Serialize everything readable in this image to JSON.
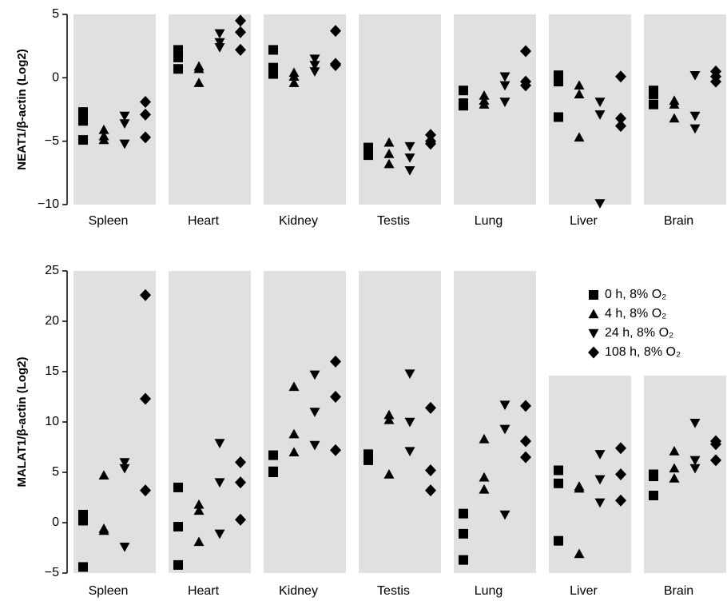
{
  "chart_data": [
    {
      "type": "strip",
      "ylabel": "NEAT1/β-actin (Log2)",
      "categories": [
        "Spleen",
        "Heart",
        "Kidney",
        "Testis",
        "Lung",
        "Liver",
        "Brain"
      ],
      "ylim": [
        -10,
        5
      ],
      "yticks": [
        5,
        0,
        {
          "value": -5,
          "label": "−5"
        },
        {
          "value": -10,
          "label": "−10"
        }
      ],
      "band_color": "#e0e0e0",
      "series": [
        {
          "marker": "square",
          "color": "#000000",
          "values": [
            [
              -2.7,
              -3.4,
              -4.9
            ],
            [
              2.2,
              1.6,
              0.7
            ],
            [
              2.2,
              0.8,
              0.3
            ],
            [
              -5.5,
              -5.8,
              -6.1
            ],
            [
              -1.0,
              -2.0,
              -2.2
            ],
            [
              0.2,
              -0.3,
              -3.1
            ],
            [
              -1.0,
              -1.3,
              -2.1
            ]
          ]
        },
        {
          "marker": "triangle-up",
          "color": "#000000",
          "values": [
            [
              -4.1,
              -4.6,
              -4.9
            ],
            [
              0.9,
              0.7,
              -0.4
            ],
            [
              0.4,
              0.1,
              -0.4
            ],
            [
              -5.1,
              -6.0,
              -6.8
            ],
            [
              -1.4,
              -1.8,
              -2.1
            ],
            [
              -0.6,
              -1.3,
              -4.7
            ],
            [
              -1.8,
              -2.1,
              -3.2
            ]
          ]
        },
        {
          "marker": "triangle-down",
          "color": "#000000",
          "values": [
            [
              -3.0,
              -3.6,
              -5.2
            ],
            [
              3.5,
              2.8,
              2.4
            ],
            [
              1.5,
              1.0,
              0.5
            ],
            [
              -5.4,
              -6.3,
              -7.3
            ],
            [
              0.1,
              -0.6,
              -1.9
            ],
            [
              -1.9,
              -2.9,
              -9.9
            ],
            [
              0.2,
              -3.0,
              -4.0
            ]
          ]
        },
        {
          "marker": "diamond",
          "color": "#000000",
          "values": [
            [
              -1.9,
              -2.9,
              -4.7
            ],
            [
              4.5,
              3.6,
              2.2
            ],
            [
              3.7,
              1.1,
              1.0
            ],
            [
              -4.5,
              -5.2,
              -5.0
            ],
            [
              2.1,
              -0.3,
              -0.6
            ],
            [
              0.1,
              -3.2,
              -3.8
            ],
            [
              0.5,
              0.1,
              -0.3
            ]
          ]
        }
      ]
    },
    {
      "type": "strip",
      "ylabel": "MALAT1/β-actin (Log2)",
      "categories": [
        "Spleen",
        "Heart",
        "Kidney",
        "Testis",
        "Lung",
        "Liver",
        "Brain"
      ],
      "ylim": [
        -5,
        25
      ],
      "yticks": [
        25,
        20,
        15,
        10,
        5,
        0,
        {
          "value": -5,
          "label": "−5"
        }
      ],
      "band_color": "#e0e0e0",
      "legend": "upper right",
      "series": [
        {
          "name": "0 h, 8% O₂",
          "marker": "square",
          "color": "#000000",
          "values": [
            [
              0.8,
              0.2,
              -4.4
            ],
            [
              3.5,
              -0.4,
              -4.2
            ],
            [
              6.7,
              5.1,
              5.0
            ],
            [
              6.8,
              6.5,
              6.2
            ],
            [
              0.9,
              -1.1,
              -3.7
            ],
            [
              5.2,
              3.9,
              -1.8
            ],
            [
              4.8,
              4.6,
              2.7
            ]
          ]
        },
        {
          "name": "4 h, 8% O₂",
          "marker": "triangle-up",
          "color": "#000000",
          "values": [
            [
              4.7,
              -0.6,
              -0.8
            ],
            [
              1.8,
              1.2,
              -1.9
            ],
            [
              13.5,
              8.8,
              7.0
            ],
            [
              10.7,
              10.2,
              4.8
            ],
            [
              8.3,
              4.5,
              3.3
            ],
            [
              3.6,
              3.4,
              -3.1
            ],
            [
              7.1,
              5.4,
              4.4
            ]
          ]
        },
        {
          "name": "24 h, 8% O₂",
          "marker": "triangle-down",
          "color": "#000000",
          "values": [
            [
              6.0,
              5.4,
              -2.4
            ],
            [
              7.9,
              4.0,
              -1.1
            ],
            [
              14.7,
              11.0,
              7.7
            ],
            [
              14.8,
              10.0,
              7.1
            ],
            [
              11.7,
              9.3,
              0.8
            ],
            [
              6.8,
              4.3,
              2.0
            ],
            [
              9.9,
              6.2,
              5.4
            ]
          ]
        },
        {
          "name": "108 h, 8% O₂",
          "marker": "diamond",
          "color": "#000000",
          "values": [
            [
              22.6,
              12.3,
              3.2
            ],
            [
              6.0,
              4.0,
              0.3
            ],
            [
              16.0,
              12.5,
              7.2
            ],
            [
              11.4,
              5.2,
              3.2
            ],
            [
              11.6,
              8.1,
              6.5
            ],
            [
              7.4,
              4.8,
              2.2
            ],
            [
              8.1,
              7.8,
              6.2
            ]
          ]
        }
      ]
    }
  ]
}
